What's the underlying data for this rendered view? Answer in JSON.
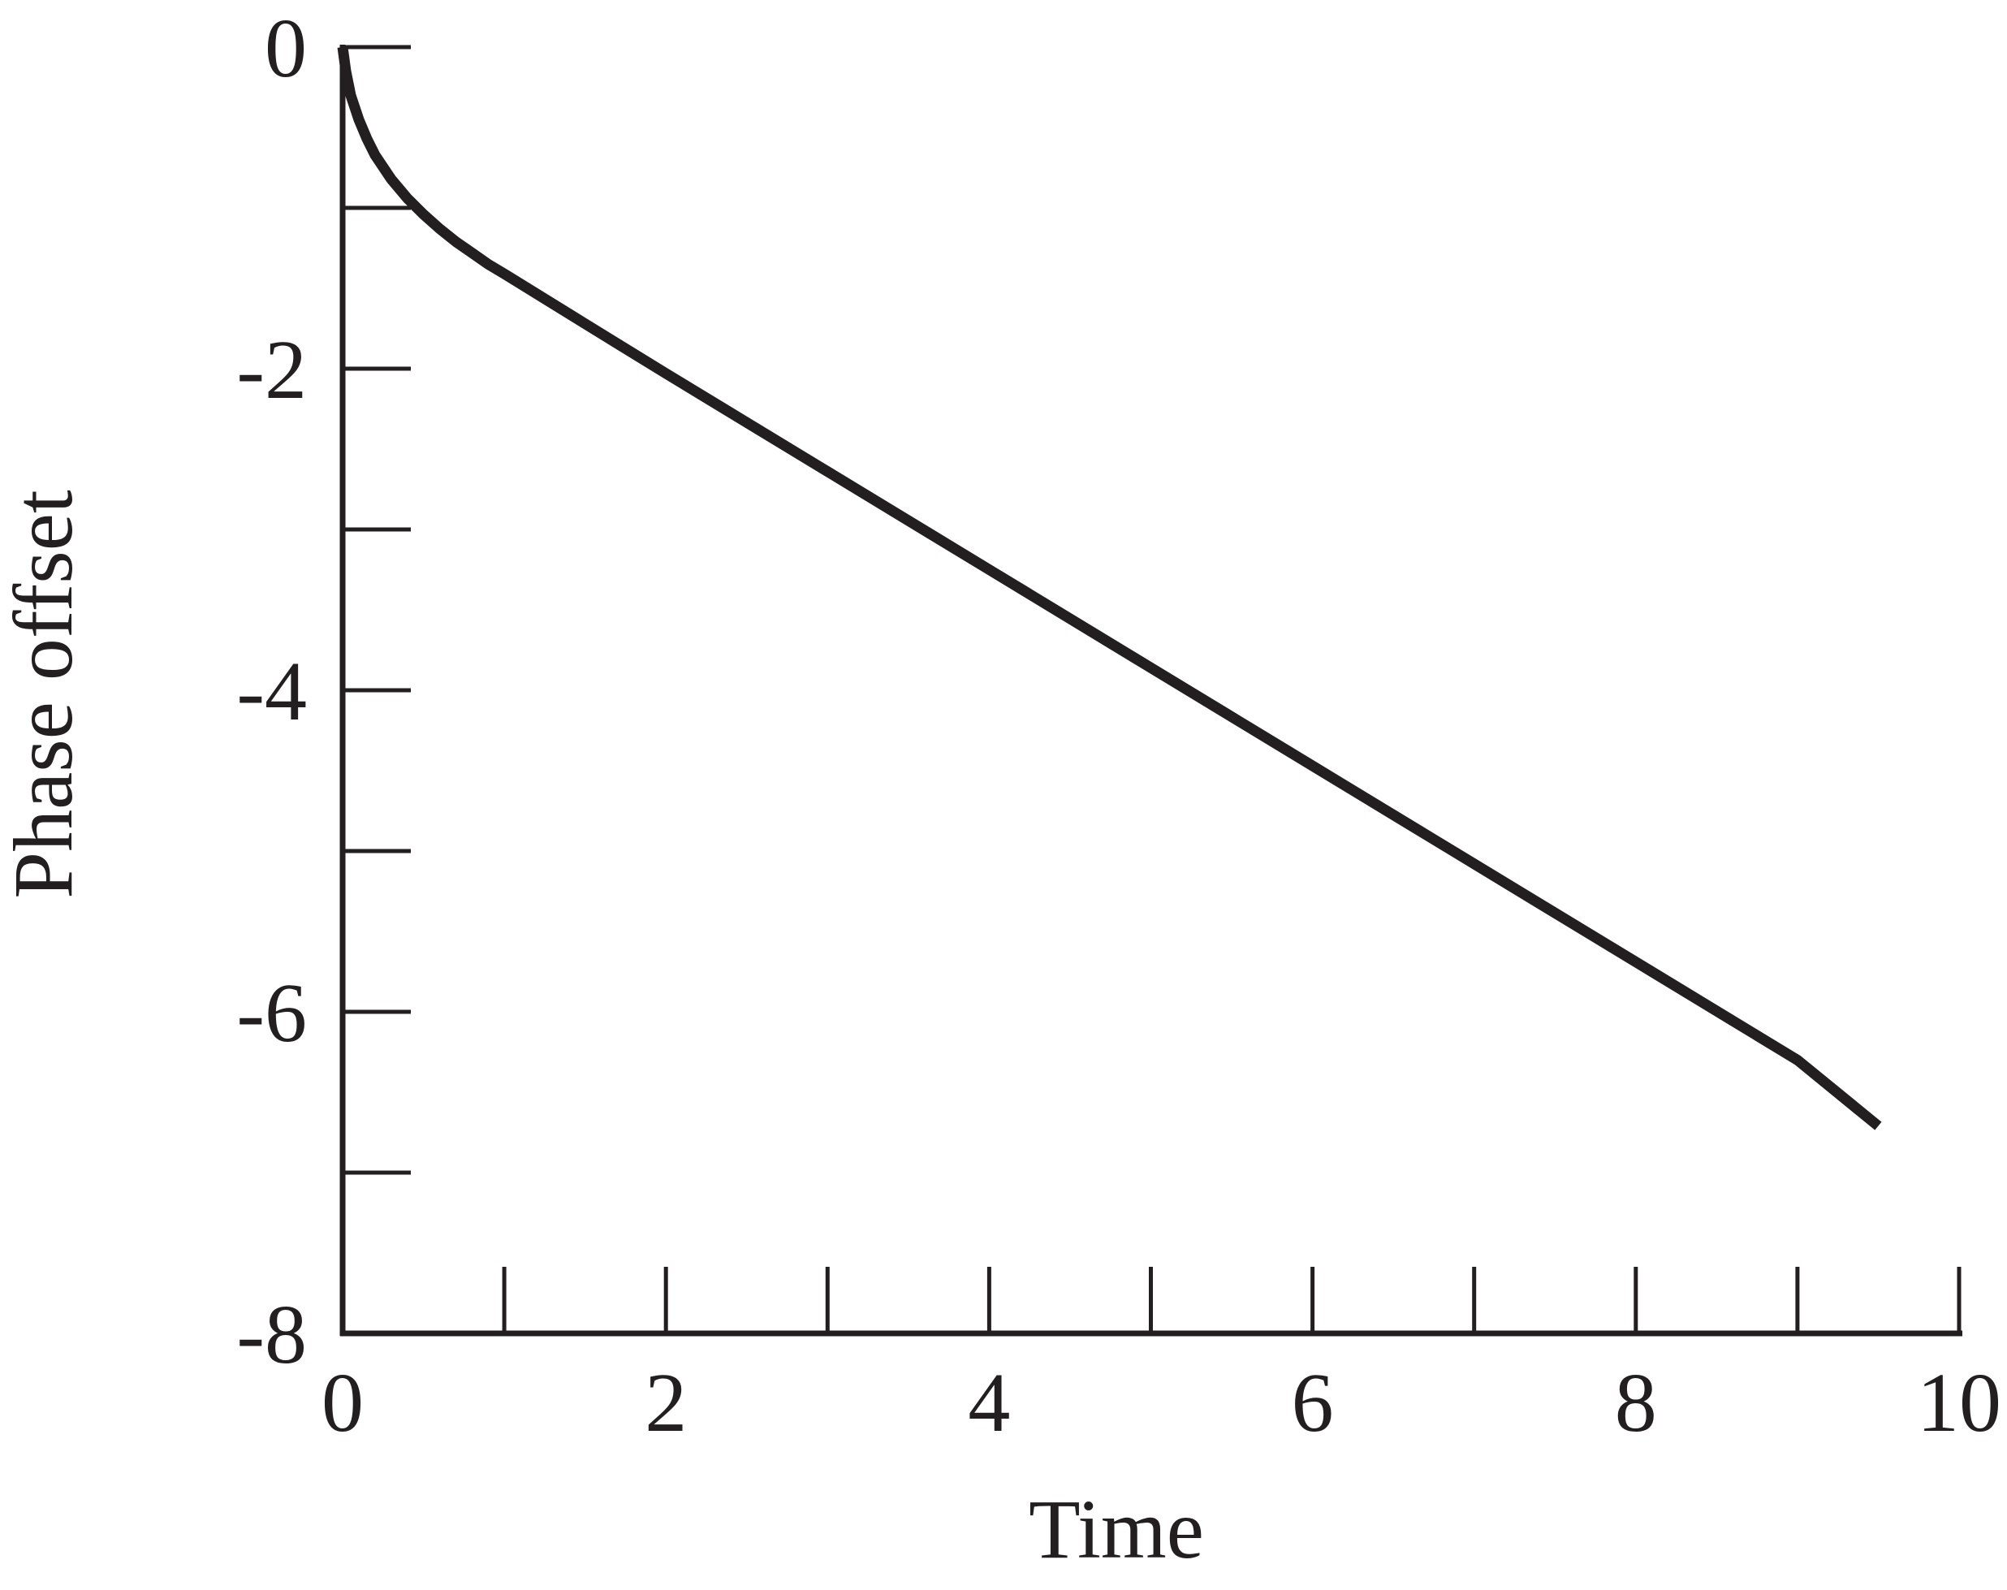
{
  "chart_data": {
    "type": "line",
    "title": "",
    "xlabel": "Time",
    "ylabel": "Phase offset",
    "xlim": [
      0,
      10
    ],
    "ylim": [
      -8,
      0
    ],
    "x_ticks": [
      0,
      2,
      4,
      6,
      8,
      10
    ],
    "x_tick_labels": [
      "0",
      "2",
      "4",
      "6",
      "8",
      "10"
    ],
    "x_minor_ticks": [
      1,
      2,
      3,
      4,
      5,
      6,
      7,
      8,
      9,
      10
    ],
    "y_ticks": [
      0,
      -2,
      -4,
      -6,
      -8
    ],
    "y_tick_labels": [
      "0",
      "-2",
      "-4",
      "-6",
      "-8"
    ],
    "y_minor_ticks": [
      0,
      -1,
      -2,
      -3,
      -4,
      -5,
      -6,
      -7
    ],
    "grid": false,
    "legend": "none",
    "line_color": "#231f20",
    "series": [
      {
        "x": [
          0.0,
          0.02,
          0.05,
          0.1,
          0.15,
          0.2,
          0.3,
          0.4,
          0.5,
          0.6,
          0.7,
          0.8,
          0.9,
          1.0,
          1.5,
          2.0,
          3.0,
          4.0,
          5.0,
          6.0,
          7.0,
          8.0,
          9.0,
          9.5
        ],
        "y": [
          0.0,
          -0.15,
          -0.3,
          -0.45,
          -0.57,
          -0.67,
          -0.82,
          -0.94,
          -1.04,
          -1.13,
          -1.21,
          -1.28,
          -1.35,
          -1.41,
          -1.72,
          -2.03,
          -2.64,
          -3.25,
          -3.86,
          -4.47,
          -5.08,
          -5.69,
          -6.3,
          -6.71
        ]
      }
    ]
  }
}
